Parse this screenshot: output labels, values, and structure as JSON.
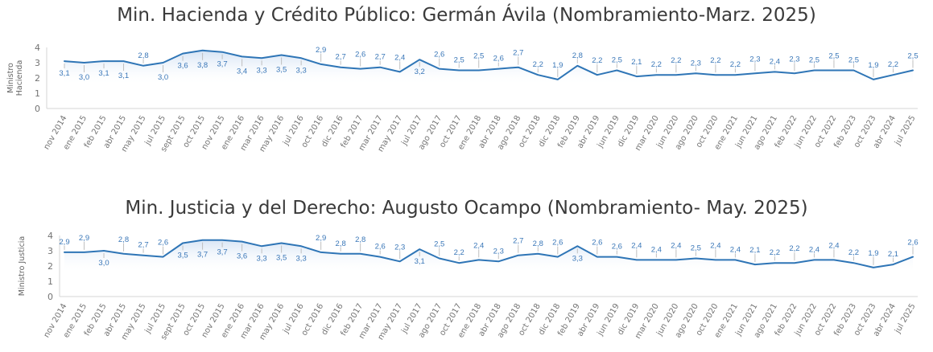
{
  "chart_data": [
    {
      "type": "line",
      "title": "Min. Hacienda y Crédito Público: Germán Ávila (Nombramiento-Marz. 2025)",
      "ylabel": "Ministro Hacienda",
      "ylabel_lines": [
        "Ministro",
        "Hacienda"
      ],
      "xlabel": "",
      "legend": "none",
      "grid": false,
      "ylim": [
        0,
        4
      ],
      "yticks": [
        4,
        3,
        2,
        1,
        0
      ],
      "categories": [
        "nov 2014",
        "ene 2015",
        "feb 2015",
        "abr 2015",
        "may 2015",
        "jul 2015",
        "sept 2015",
        "oct 2015",
        "nov 2015",
        "ene 2016",
        "mar 2016",
        "may 2016",
        "jul 2016",
        "oct 2016",
        "dic 2016",
        "feb 2017",
        "mar 2017",
        "may 2017",
        "jul 2017",
        "ago 2017",
        "oct 2017",
        "ene 2018",
        "abr 2018",
        "ago 2018",
        "oct 2018",
        "dic 2018",
        "feb 2019",
        "abr 2019",
        "jun 2019",
        "dic 2019",
        "mar 2020",
        "jun 2020",
        "ago 2020",
        "oct 2020",
        "ene 2021",
        "jun 2021",
        "ago 2021",
        "feb 2022",
        "jun 2022",
        "oct 2022",
        "feb 2023",
        "oct 2023",
        "abr 2024",
        "jul 2025"
      ],
      "values": [
        3.1,
        3.0,
        3.1,
        3.1,
        2.8,
        3.0,
        3.6,
        3.8,
        3.7,
        3.4,
        3.3,
        3.5,
        3.3,
        2.9,
        2.7,
        2.6,
        2.7,
        2.4,
        3.2,
        2.6,
        2.5,
        2.5,
        2.6,
        2.7,
        2.2,
        1.9,
        2.8,
        2.2,
        2.5,
        2.1,
        2.2,
        2.2,
        2.3,
        2.2,
        2.2,
        2.3,
        2.4,
        2.3,
        2.5,
        2.5,
        2.5,
        1.9,
        2.2,
        2.5
      ],
      "decimal_separator": ",",
      "line_color": "#2E75B6",
      "fill_top_color": "#C7DAF1",
      "label_color": "#3A77B8",
      "leader_color": "#BFBFBF",
      "axis_color": "#D4D4D4",
      "tick_color": "#737373",
      "title_color": "#3a3a3a"
    },
    {
      "type": "line",
      "title": "Min. Justicia y del Derecho: Augusto Ocampo (Nombramiento- May. 2025)",
      "ylabel": "Ministro Justicia",
      "ylabel_lines": [
        "Ministro Justicia"
      ],
      "xlabel": "",
      "legend": "none",
      "grid": false,
      "ylim": [
        0,
        4
      ],
      "yticks": [
        4,
        3,
        2,
        1,
        0
      ],
      "categories": [
        "nov 2014",
        "ene 2015",
        "feb 2015",
        "abr 2015",
        "may 2015",
        "jul 2015",
        "sept 2015",
        "oct 2015",
        "nov 2015",
        "ene 2016",
        "mar 2016",
        "may 2016",
        "jul 2016",
        "oct 2016",
        "dic 2016",
        "feb 2017",
        "mar 2017",
        "may 2017",
        "jul 2017",
        "ago 2017",
        "oct 2017",
        "ene 2018",
        "abr 2018",
        "ago 2018",
        "oct 2018",
        "dic 2018",
        "feb 2019",
        "abr 2019",
        "jun 2019",
        "dic 2019",
        "mar 2020",
        "jun 2020",
        "ago 2020",
        "oct 2020",
        "ene 2021",
        "jun 2021",
        "ago 2021",
        "feb 2022",
        "jun 2022",
        "oct 2022",
        "feb 2023",
        "oct 2023",
        "abr 2024",
        "jul 2025"
      ],
      "values": [
        2.9,
        2.9,
        3.0,
        2.8,
        2.7,
        2.6,
        3.5,
        3.7,
        3.7,
        3.6,
        3.3,
        3.5,
        3.3,
        2.9,
        2.8,
        2.8,
        2.6,
        2.3,
        3.1,
        2.5,
        2.2,
        2.4,
        2.3,
        2.7,
        2.8,
        2.6,
        3.3,
        2.6,
        2.6,
        2.4,
        2.4,
        2.4,
        2.5,
        2.4,
        2.4,
        2.1,
        2.2,
        2.2,
        2.4,
        2.4,
        2.2,
        1.9,
        2.1,
        2.6
      ],
      "decimal_separator": ",",
      "line_color": "#2E75B6",
      "fill_top_color": "#C7DAF1",
      "label_color": "#3A77B8",
      "leader_color": "#BFBFBF",
      "axis_color": "#D4D4D4",
      "tick_color": "#737373",
      "title_color": "#3a3a3a"
    }
  ]
}
